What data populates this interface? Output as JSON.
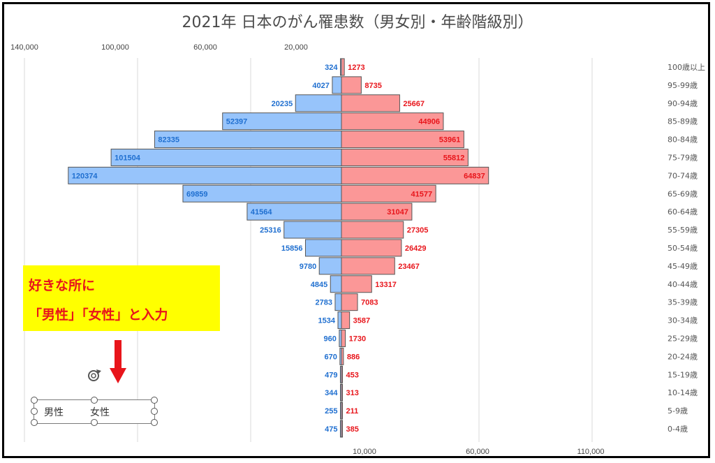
{
  "title": "2021年 日本のがん罹患数（男女別・年齢階級別）",
  "colors": {
    "male_fill": "#97c4fb",
    "female_fill": "#fb9797",
    "bar_stroke": "#555555",
    "male_label": "#1f6fd0",
    "female_label": "#e8151b",
    "note_bg": "#ffff00",
    "note_text": "#e8151b",
    "arrow": "#e8151b"
  },
  "chart_data": {
    "type": "bar",
    "orientation": "horizontal-pyramid",
    "categories": [
      "100歳以上",
      "95-99歳",
      "90-94歳",
      "85-89歳",
      "80-84歳",
      "75-79歳",
      "70-74歳",
      "65-69歳",
      "60-64歳",
      "55-59歳",
      "50-54歳",
      "45-49歳",
      "40-44歳",
      "35-39歳",
      "30-34歳",
      "25-29歳",
      "20-24歳",
      "15-19歳",
      "10-14歳",
      "5-9歳",
      "0-4歳"
    ],
    "series": [
      {
        "name": "男性",
        "values": [
          324,
          4027,
          20235,
          52397,
          82335,
          101504,
          120374,
          69859,
          41564,
          25316,
          15856,
          9780,
          4845,
          2783,
          1534,
          960,
          670,
          479,
          344,
          255,
          475
        ]
      },
      {
        "name": "女性",
        "values": [
          1273,
          8735,
          25667,
          44906,
          53961,
          55812,
          64837,
          41577,
          31047,
          27305,
          26429,
          23467,
          13317,
          7083,
          3587,
          1730,
          886,
          453,
          313,
          211,
          385
        ]
      }
    ],
    "top_axis_ticks": [
      "140,000",
      "100,000",
      "60,000",
      "20,000"
    ],
    "bottom_axis_ticks": [
      "10,000",
      "60,000",
      "110,000"
    ],
    "grid": true,
    "data_labels": true
  },
  "note": {
    "line1": "好きな所に",
    "line2": "「男性」「女性」と入力"
  },
  "legend_box": {
    "male": "男性",
    "female": "女性"
  }
}
